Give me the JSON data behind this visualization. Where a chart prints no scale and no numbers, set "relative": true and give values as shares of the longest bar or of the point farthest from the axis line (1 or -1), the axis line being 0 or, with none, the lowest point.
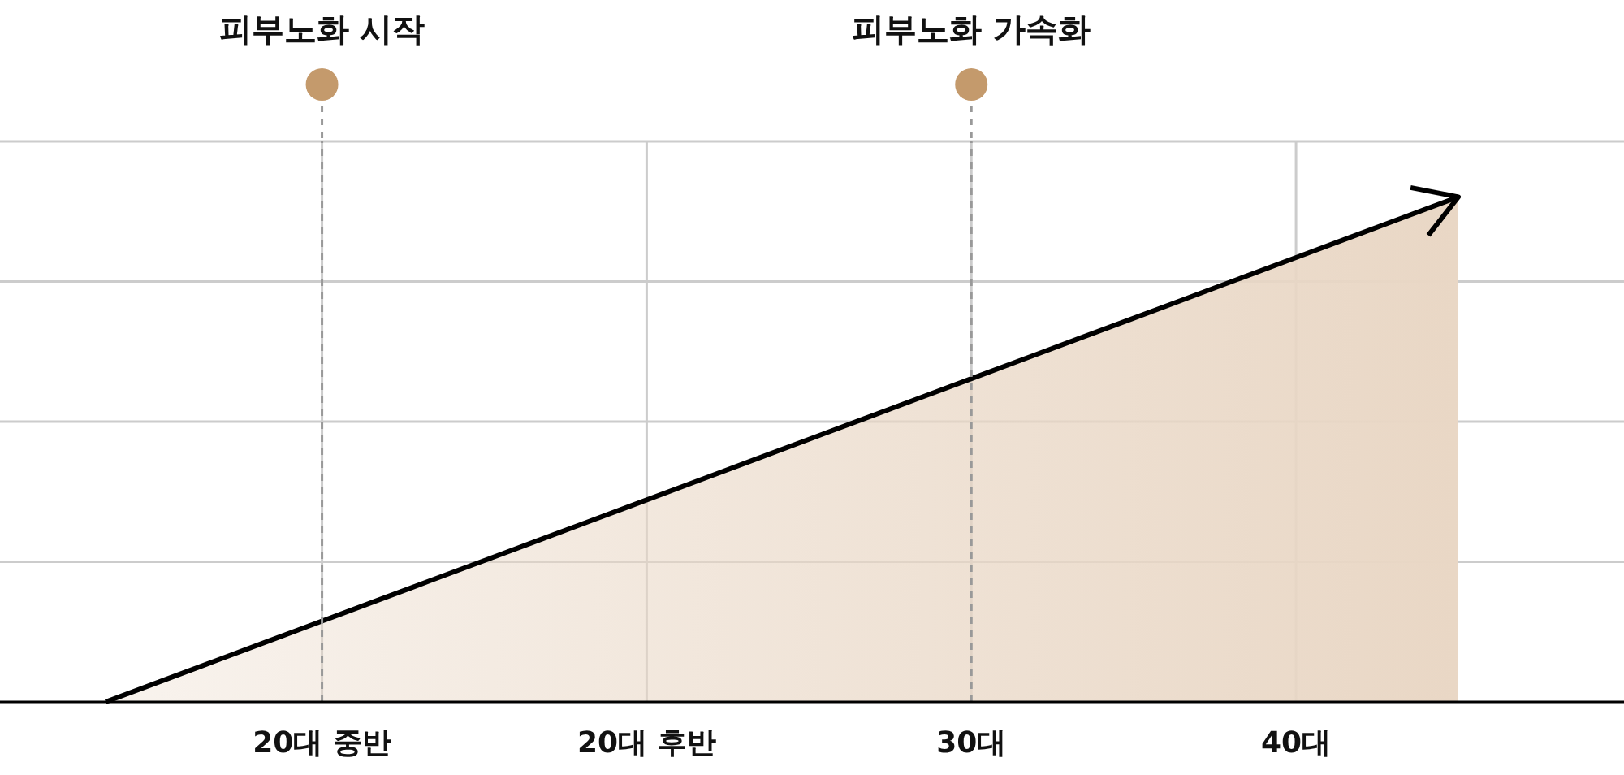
{
  "chart_data": {
    "type": "area",
    "relative": true,
    "categories": [
      null,
      null,
      null,
      null,
      "20대 중반",
      null,
      null,
      null,
      null,
      null,
      "20대 후반",
      null,
      null,
      null,
      null,
      null,
      "30대",
      null,
      null,
      null,
      null,
      null,
      "40대",
      null,
      null,
      null
    ],
    "series": [
      {
        "color": "#e9d7c5",
        "values": [
          0,
          0.04,
          0.08,
          0.12,
          0.16,
          0.2,
          0.24,
          0.28,
          0.32,
          0.36,
          0.4,
          0.44,
          0.48,
          0.52,
          0.56,
          0.6,
          0.64,
          0.68,
          0.72,
          0.76,
          0.8,
          0.84,
          0.88,
          0.92,
          0.96,
          1
        ]
      }
    ],
    "grid": true,
    "ref_lines": [
      {
        "axis": "x",
        "value": "20대 중반",
        "label": "피부노화 시작",
        "line_style": "dashed",
        "color": "#999999"
      },
      {
        "axis": "x",
        "value": "30대",
        "label": "피부노화 가속화",
        "line_style": "dashed",
        "color": "#999999"
      }
    ]
  }
}
